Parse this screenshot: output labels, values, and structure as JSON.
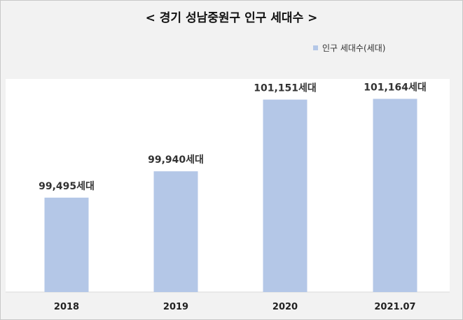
{
  "chart_data": {
    "type": "bar",
    "title": "< 경기 성남중원구 인구 세대수 >",
    "categories": [
      "2018",
      "2019",
      "2020",
      "2021.07"
    ],
    "series": [
      {
        "name": "인구 세대수(세대)",
        "values": [
          99495,
          99940,
          101151,
          101164
        ],
        "labels": [
          "99,495세대",
          "99,940세대",
          "101,151세대",
          "101,164세대"
        ]
      }
    ],
    "ylim": [
      97900,
      101500
    ],
    "legend_position": "top-right",
    "grid": false,
    "bar_color": "#b4c7e7",
    "xlabel": "",
    "ylabel": ""
  }
}
